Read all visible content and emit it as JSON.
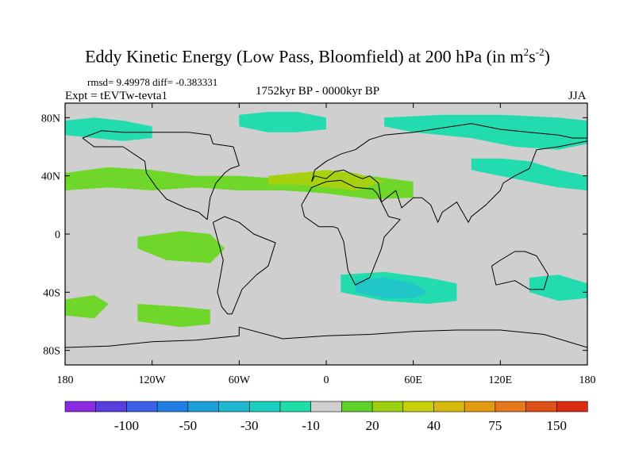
{
  "chart_data": {
    "type": "heatmap",
    "title_main": "Eddy Kinetic Energy (Low Pass, Bloomfield) at 200 hPa (in m",
    "title_sup1": "2",
    "title_mid": "s",
    "title_sup2": "-2",
    "title_end": ")",
    "stats_text": "rmsd= 9.49978  diff= -0.383331",
    "experiment": "Expt = tEVTw-tevta1",
    "period": "1752kyr BP - 0000kyr BP",
    "season": "JJA",
    "x_axis": {
      "range": [
        -180,
        180
      ],
      "ticks": [
        {
          "value": -180,
          "label": "180"
        },
        {
          "value": -120,
          "label": "120W"
        },
        {
          "value": -60,
          "label": "60W"
        },
        {
          "value": 0,
          "label": "0"
        },
        {
          "value": 60,
          "label": "60E"
        },
        {
          "value": 120,
          "label": "120E"
        },
        {
          "value": 180,
          "label": "180"
        }
      ]
    },
    "y_axis": {
      "range": [
        -90,
        90
      ],
      "ticks": [
        {
          "value": 80,
          "label": "80N"
        },
        {
          "value": 40,
          "label": "40N"
        },
        {
          "value": 0,
          "label": "0"
        },
        {
          "value": -40,
          "label": "40S"
        },
        {
          "value": -80,
          "label": "80S"
        }
      ]
    },
    "colorbar": {
      "colors": [
        "#8a2be2",
        "#5a3ee0",
        "#3a5fe8",
        "#1f7fe6",
        "#1a9fd9",
        "#20b7d0",
        "#1ccfc0",
        "#20dfa6",
        "#cfcfcf",
        "#5fd22a",
        "#9ad00f",
        "#c7d00a",
        "#d6b90a",
        "#e39a10",
        "#e4781a",
        "#e04f17",
        "#d82b13"
      ],
      "labels": [
        {
          "after_index": 1,
          "label": "-100"
        },
        {
          "after_index": 3,
          "label": "-50"
        },
        {
          "after_index": 5,
          "label": "-30"
        },
        {
          "after_index": 7,
          "label": "-10"
        },
        {
          "after_index": 9,
          "label": "20"
        },
        {
          "after_index": 11,
          "label": "40"
        },
        {
          "after_index": 13,
          "label": "75"
        },
        {
          "after_index": 15,
          "label": "150"
        }
      ]
    },
    "anomaly_regions": [
      {
        "name": "nh-midlat-band-atlantic",
        "color": "#6fd62a",
        "lon": [
          -180,
          -150,
          -120,
          -90,
          -60,
          -30,
          0,
          30,
          60,
          60,
          30,
          0,
          -30,
          -60,
          -90,
          -120,
          -150,
          -180
        ],
        "lat": [
          42,
          46,
          44,
          40,
          40,
          38,
          42,
          40,
          36,
          25,
          24,
          28,
          30,
          30,
          32,
          30,
          32,
          30
        ]
      },
      {
        "name": "nh-midlat-band-core",
        "color": "#a6d110",
        "lon": [
          -40,
          -20,
          0,
          20,
          40,
          20,
          0,
          -20,
          -40
        ],
        "lat": [
          40,
          42,
          44,
          42,
          36,
          30,
          32,
          34,
          34
        ]
      },
      {
        "name": "arctic-blue-asia",
        "color": "#22dcb0",
        "lon": [
          40,
          80,
          120,
          160,
          180,
          180,
          160,
          130,
          100,
          60,
          40
        ],
        "lat": [
          80,
          82,
          82,
          80,
          78,
          62,
          58,
          60,
          66,
          70,
          74
        ]
      },
      {
        "name": "nw-pacific-blue",
        "color": "#22dcb0",
        "lon": [
          100,
          120,
          140,
          160,
          180,
          180,
          160,
          140,
          120,
          100
        ],
        "lat": [
          52,
          52,
          50,
          44,
          40,
          30,
          32,
          36,
          40,
          44
        ]
      },
      {
        "name": "arctic-blue-americas",
        "color": "#22dcb0",
        "lon": [
          -180,
          -160,
          -140,
          -120,
          -120,
          -140,
          -160,
          -180
        ],
        "lat": [
          78,
          80,
          78,
          74,
          66,
          64,
          66,
          68
        ]
      },
      {
        "name": "greenland-blue",
        "color": "#22dcb0",
        "lon": [
          -60,
          -40,
          -20,
          0,
          0,
          -20,
          -40,
          -60
        ],
        "lat": [
          82,
          84,
          84,
          80,
          72,
          70,
          70,
          74
        ]
      },
      {
        "name": "tropical-pacific-green",
        "color": "#6fd62a",
        "lon": [
          -130,
          -100,
          -80,
          -70,
          -80,
          -110,
          -130
        ],
        "lat": [
          -2,
          2,
          0,
          -10,
          -20,
          -18,
          -10
        ]
      },
      {
        "name": "south-pacific-green",
        "color": "#6fd62a",
        "lon": [
          -130,
          -100,
          -80,
          -80,
          -100,
          -130
        ],
        "lat": [
          -48,
          -50,
          -52,
          -62,
          -64,
          -60
        ]
      },
      {
        "name": "south-indian-blue",
        "color": "#22dcb0",
        "lon": [
          10,
          40,
          70,
          90,
          90,
          70,
          40,
          10
        ],
        "lat": [
          -28,
          -26,
          -30,
          -34,
          -46,
          -48,
          -46,
          -40
        ]
      },
      {
        "name": "south-indian-deep-blue",
        "color": "#20c6c8",
        "lon": [
          20,
          40,
          60,
          70,
          60,
          40,
          20
        ],
        "lat": [
          -32,
          -30,
          -34,
          -40,
          -44,
          -44,
          -40
        ]
      },
      {
        "name": "australia-blue",
        "color": "#22dcb0",
        "lon": [
          140,
          160,
          180,
          180,
          160,
          140
        ],
        "lat": [
          -30,
          -28,
          -34,
          -44,
          -46,
          -40
        ]
      },
      {
        "name": "sh-green-far-south",
        "color": "#6fd62a",
        "lon": [
          -180,
          -160,
          -150,
          -160,
          -180
        ],
        "lat": [
          -45,
          -42,
          -48,
          -58,
          -56
        ]
      }
    ],
    "coastlines": [
      {
        "name": "north-america",
        "lon": [
          -168,
          -160,
          -140,
          -125,
          -124,
          -117,
          -110,
          -97,
          -88,
          -82,
          -80,
          -76,
          -70,
          -66,
          -60,
          -64,
          -78,
          -80,
          -95,
          -110,
          -125,
          -140,
          -155,
          -168
        ],
        "lat": [
          66,
          60,
          60,
          50,
          42,
          32,
          24,
          18,
          15,
          10,
          25,
          35,
          42,
          45,
          47,
          60,
          62,
          68,
          70,
          70,
          70,
          70,
          71,
          66
        ]
      },
      {
        "name": "south-america",
        "lon": [
          -78,
          -70,
          -60,
          -50,
          -35,
          -40,
          -48,
          -58,
          -65,
          -68,
          -72,
          -75,
          -71,
          -78
        ],
        "lat": [
          8,
          12,
          8,
          0,
          -6,
          -22,
          -28,
          -38,
          -55,
          -55,
          -50,
          -40,
          -18,
          8
        ]
      },
      {
        "name": "europe-asia",
        "lon": [
          -10,
          -8,
          0,
          10,
          20,
          30,
          40,
          60,
          80,
          100,
          120,
          140,
          160,
          170,
          180,
          180,
          160,
          145,
          140,
          130,
          122,
          120,
          110,
          100,
          98,
          90,
          80,
          77,
          72,
          66,
          60,
          52,
          48,
          38,
          36,
          30,
          25,
          20,
          12,
          6,
          0,
          -8,
          -10
        ],
        "lat": [
          36,
          44,
          50,
          55,
          58,
          65,
          68,
          70,
          73,
          76,
          72,
          70,
          68,
          66,
          66,
          64,
          60,
          58,
          45,
          40,
          35,
          30,
          20,
          12,
          8,
          22,
          15,
          8,
          20,
          25,
          25,
          18,
          30,
          22,
          35,
          40,
          38,
          40,
          44,
          43,
          38,
          40,
          36
        ]
      },
      {
        "name": "africa",
        "lon": [
          -17,
          -10,
          0,
          10,
          20,
          32,
          35,
          43,
          51,
          40,
          38,
          30,
          20,
          15,
          12,
          8,
          5,
          -5,
          -15,
          -17
        ],
        "lat": [
          20,
          32,
          36,
          37,
          32,
          31,
          28,
          12,
          10,
          -2,
          -10,
          -30,
          -35,
          -25,
          -5,
          4,
          5,
          5,
          12,
          20
        ]
      },
      {
        "name": "australia",
        "lon": [
          114,
          120,
          130,
          137,
          145,
          153,
          150,
          140,
          130,
          117,
          114
        ],
        "lat": [
          -22,
          -18,
          -12,
          -12,
          -15,
          -28,
          -38,
          -38,
          -32,
          -35,
          -22
        ]
      },
      {
        "name": "antarctica",
        "lon": [
          -180,
          -150,
          -120,
          -90,
          -60,
          -60,
          -30,
          0,
          30,
          60,
          90,
          120,
          150,
          180
        ],
        "lat": [
          -78,
          -77,
          -74,
          -73,
          -70,
          -64,
          -72,
          -70,
          -69,
          -67,
          -66,
          -66,
          -69,
          -78
        ]
      }
    ]
  }
}
